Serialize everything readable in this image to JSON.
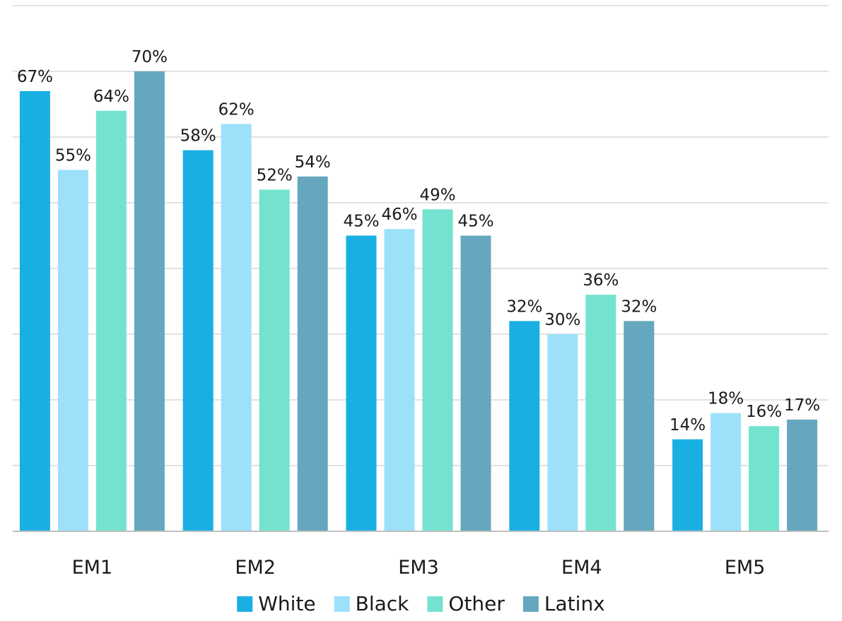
{
  "chart_data": {
    "type": "bar",
    "categories": [
      "EM1",
      "EM2",
      "EM3",
      "EM4",
      "EM5"
    ],
    "series": [
      {
        "name": "White",
        "color": "#1AAFE3",
        "values": [
          67,
          58,
          45,
          32,
          14
        ],
        "labels": [
          "67%",
          "58%",
          "45%",
          "32%",
          "14%"
        ]
      },
      {
        "name": "Black",
        "color": "#9CE1F9",
        "values": [
          55,
          62,
          46,
          30,
          18
        ],
        "labels": [
          "55%",
          "62%",
          "46%",
          "30%",
          "18%"
        ]
      },
      {
        "name": "Other",
        "color": "#73E3CF",
        "values": [
          64,
          52,
          49,
          36,
          16
        ],
        "labels": [
          "64%",
          "52%",
          "49%",
          "36%",
          "16%"
        ]
      },
      {
        "name": "Latinx",
        "color": "#65A7BE",
        "values": [
          70,
          54,
          45,
          32,
          17
        ],
        "labels": [
          "70%",
          "54%",
          "45%",
          "32%",
          "17%"
        ]
      }
    ],
    "ylim": [
      0,
      80
    ],
    "grid": true,
    "grid_color": "#d9d9d9",
    "axis_color": "#bfbfbf",
    "legend_position": "bottom",
    "title": "",
    "xlabel": "",
    "ylabel": ""
  }
}
